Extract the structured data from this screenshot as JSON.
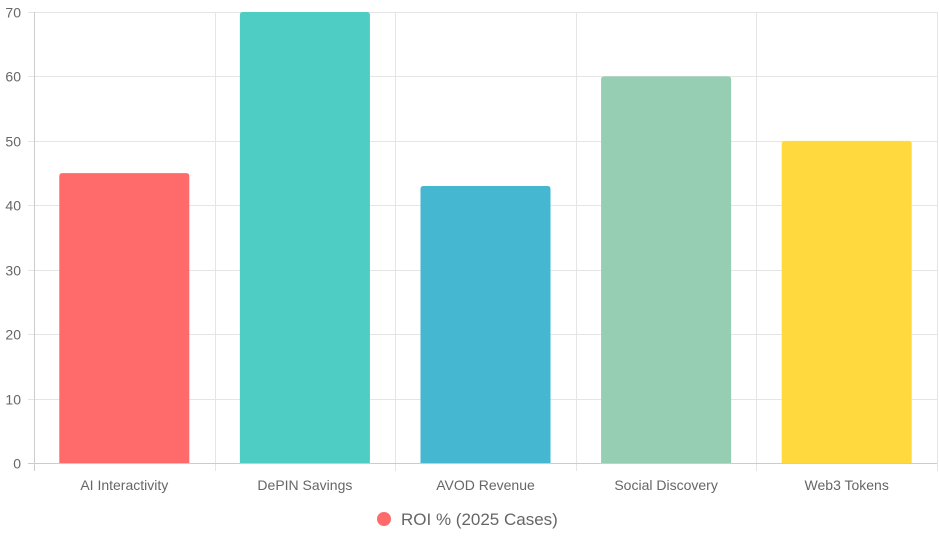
{
  "chart_data": {
    "type": "bar",
    "categories": [
      "AI Interactivity",
      "DePIN Savings",
      "AVOD Revenue",
      "Social Discovery",
      "Web3 Tokens"
    ],
    "series": [
      {
        "name": "ROI % (2025 Cases)",
        "values": [
          45,
          70,
          43,
          60,
          50
        ],
        "colors": [
          "#ff6b6b",
          "#4ecdc4",
          "#45b7d1",
          "#96ceb4",
          "#ffd93d"
        ]
      }
    ],
    "ylim": [
      0,
      70
    ],
    "yticks": [
      0,
      10,
      20,
      30,
      40,
      50,
      60,
      70
    ],
    "grid": true,
    "legend_position": "bottom",
    "legend_marker_color": "#ff6b6b"
  }
}
